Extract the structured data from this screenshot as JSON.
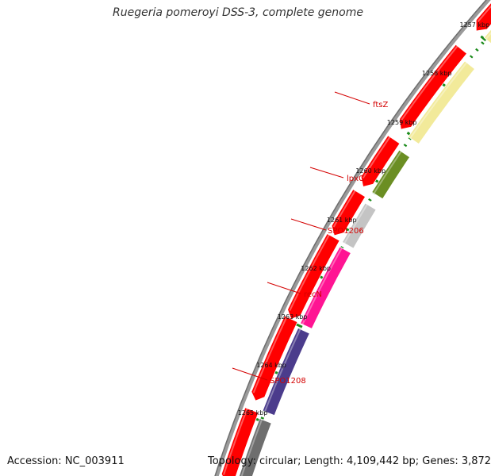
{
  "title": "Ruegeria pomeroyi DSS-3, complete genome",
  "footer": {
    "accession": "Accession: NC_003911",
    "topology": "Topology: circular; Length: 4,109,442 bp; Genes: 3,872"
  },
  "colors": {
    "background": "#ffffff",
    "backbone": "#8a8a8a",
    "tick": "#1a8a1a",
    "label": "#d40000",
    "cds_forward": "#ff0000",
    "ftsZ": "#f2ea9a",
    "lpxC": "#6b8e23",
    "SPO1206": "#c4c4c4",
    "recN": "#ff1493",
    "SPO1208": "#4b3c8c"
  },
  "scale_labels": [
    "1257 kbp",
    "1258 kbp",
    "1259 kbp",
    "1260 kbp",
    "1261 kbp",
    "1262 kbp",
    "1263 kbp",
    "1264 kbp",
    "1265 kbp"
  ],
  "gene_labels": [
    {
      "name": "ftsZ",
      "color_key": "ftsZ"
    },
    {
      "name": "lpxC",
      "color_key": "lpxC"
    },
    {
      "name": "SPO1206",
      "color_key": "SPO1206"
    },
    {
      "name": "recN",
      "color_key": "recN"
    },
    {
      "name": "SPO1208",
      "color_key": "SPO1208"
    }
  ]
}
